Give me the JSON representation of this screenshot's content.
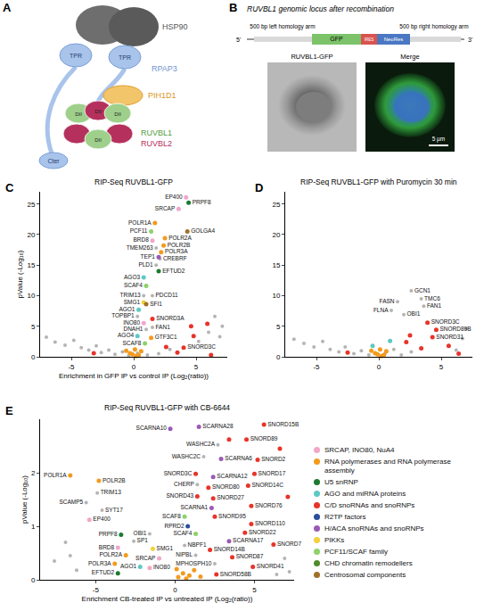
{
  "panel_A": {
    "label": "A",
    "hsp90": "HSP90",
    "tpr": [
      "TPR",
      "TPR"
    ],
    "rpap3": "RPAP3",
    "pih1d1": "PIH1D1",
    "domains": [
      "DII",
      "DII",
      "DII",
      "DII"
    ],
    "ruvbl1": "RUVBL1",
    "ruvbl2": "RUVBL2",
    "cter": "Cter"
  },
  "panel_B": {
    "label": "B",
    "title": "RUVBL1 genomic locus after recombination",
    "five_prime": "5'",
    "three_prime": "3'",
    "left_arm": "500 bp left homology arm",
    "right_arm": "500 bp right homology arm",
    "cassette": [
      "GFP",
      "IRES",
      "NeoRes"
    ],
    "images": [
      "RUVBL1-GFP",
      "Merge"
    ],
    "scale_bar": "5 µm"
  },
  "key": [
    {
      "name": "SRCAP, INO80, NuA4",
      "color": "#f2a7c9"
    },
    {
      "name": "RNA polymerases and RNA polymerase assembly",
      "color": "#f39a1e"
    },
    {
      "name": "U5 snRNP",
      "color": "#1b7a2f"
    },
    {
      "name": "AGO and miRNA proteins",
      "color": "#5ec8c5"
    },
    {
      "name": "C/D snoRNAs and snoRNPs",
      "color": "#e8332a"
    },
    {
      "name": "R2TP factors",
      "color": "#2b4e9b"
    },
    {
      "name": "H/ACA snoRNAs and snoRNPs",
      "color": "#9b59b6"
    },
    {
      "name": "PIKKs",
      "color": "#f2d13c"
    },
    {
      "name": "PCF11/SCAF family",
      "color": "#8fd16a"
    },
    {
      "name": "CHD chromatin remodellers",
      "color": "#4f8a2b"
    },
    {
      "name": "Centrosomal components",
      "color": "#a0712a"
    }
  ],
  "chart_data": [
    {
      "panel": "C",
      "type": "scatter",
      "title": "RIP-Seq RUVBL1-GFP",
      "x_label": "Enrichment in GFP IP vs control IP (Log₂(ratio))",
      "y_label": "pValue (-Log₁₀)",
      "xlim": [
        -7.5,
        7.5
      ],
      "ylim": [
        0,
        27
      ],
      "xticks": [
        -5,
        0,
        5
      ],
      "yticks": [
        0,
        5,
        10,
        15,
        20,
        25
      ],
      "series": [
        {
          "color": "#b4b4b4",
          "labels": [
            "TMEM263",
            "CREBRF",
            "PLD1",
            "TRIM13",
            "PDCD11",
            "TOPBP1",
            "DNAH1",
            "FAN1",
            null,
            null,
            null,
            null,
            null,
            null,
            null,
            null,
            null,
            null,
            null,
            null,
            null,
            null,
            null,
            null,
            null,
            null,
            null,
            null,
            null
          ],
          "x": [
            1.8,
            2.1,
            1.8,
            0.8,
            1.5,
            0.3,
            1.0,
            1.5,
            -7.0,
            -6.3,
            -5.5,
            -4.8,
            -4.2,
            -3.6,
            -3.0,
            -2.6,
            -2.0,
            -1.5,
            -0.9,
            -0.4,
            0.3,
            1.1,
            2.0,
            2.9,
            5.2,
            6.0,
            6.9,
            7.1,
            6.5
          ],
          "y": [
            17.8,
            16.0,
            15.0,
            10.0,
            10.0,
            6.6,
            4.5,
            4.8,
            3.2,
            2.4,
            1.9,
            2.7,
            1.5,
            1.1,
            1.8,
            0.7,
            1.1,
            0.4,
            0.8,
            0.2,
            0.6,
            0.3,
            0.5,
            1.2,
            2.5,
            4.0,
            3.3,
            5.0,
            6.6
          ]
        },
        {
          "name": "SRCAP, INO80, NuA4",
          "color": "#f2a7c9",
          "labels": [
            "EP400",
            "SRCAP",
            "BRD8",
            "INO80"
          ],
          "x": [
            4.2,
            3.6,
            1.5,
            0.8
          ],
          "y": [
            26.1,
            24.2,
            19.0,
            5.5
          ]
        },
        {
          "name": "RNA polymerases and RNA polymerase assembly",
          "color": "#f39a1e",
          "labels": [
            "POLR1A",
            "POLR2A",
            "POLR2B",
            "POLR3A",
            "GTF3C1",
            null,
            null,
            null,
            null,
            null,
            null,
            null
          ],
          "x": [
            1.7,
            2.5,
            2.4,
            2.2,
            1.4,
            0.1,
            -0.3,
            0.4,
            -0.6,
            0.6,
            0.2,
            -0.1
          ],
          "y": [
            21.9,
            19.4,
            18.2,
            17.1,
            3.1,
            1.2,
            0.6,
            0.3,
            1.0,
            0.9,
            0.1,
            0.4
          ]
        },
        {
          "name": "U5 snRNP",
          "color": "#1b7a2f",
          "labels": [
            "PRPF8",
            "EFTUD2"
          ],
          "x": [
            4.4,
            2.0
          ],
          "y": [
            25.2,
            14.0
          ]
        },
        {
          "name": "AGO and miRNA proteins",
          "color": "#5ec8c5",
          "labels": [
            "AGO3",
            "AGO1",
            "AGO4"
          ],
          "x": [
            0.8,
            0.4,
            0.3
          ],
          "y": [
            13.0,
            7.7,
            3.4
          ]
        },
        {
          "name": "C/D snoRNAs and snoRNPs",
          "color": "#e8332a",
          "labels": [
            "SNORD3A",
            "SNORD3C",
            null,
            null,
            null,
            null,
            null,
            null,
            null
          ],
          "x": [
            1.5,
            4.0,
            4.6,
            4.8,
            2.6,
            3.5,
            6.2,
            5.9,
            -3.2
          ],
          "y": [
            6.2,
            1.5,
            5.0,
            3.4,
            1.6,
            0.7,
            0.3,
            5.4,
            0.6
          ]
        },
        {
          "name": "H/ACA snoRNAs and snoRNPs",
          "color": "#9b59b6",
          "labels": [
            "TEP1"
          ],
          "x": [
            2.0
          ],
          "y": [
            16.3
          ]
        },
        {
          "name": "PIKKs",
          "color": "#f2d13c",
          "labels": [
            "SMG1"
          ],
          "x": [
            0.8
          ],
          "y": [
            8.9
          ]
        },
        {
          "name": "PCF11/SCAF family",
          "color": "#8fd16a",
          "labels": [
            "PCF11",
            "SCAF4",
            "SCAF8"
          ],
          "x": [
            1.4,
            1.0,
            0.9
          ],
          "y": [
            20.5,
            11.6,
            2.2
          ]
        },
        {
          "name": "Centrosomal components",
          "color": "#a0712a",
          "labels": [
            "GOLGA4",
            "SFI1"
          ],
          "x": [
            4.3,
            1.0
          ],
          "y": [
            20.5,
            8.6
          ]
        }
      ]
    },
    {
      "panel": "D",
      "type": "scatter",
      "title": "RIP-Seq RUVBL1-GFP with Puromycin 30 min",
      "xlim": [
        -7.5,
        7.5
      ],
      "ylim": [
        0,
        27
      ],
      "xticks": [
        -5,
        0,
        5
      ],
      "yticks": [
        0,
        5,
        10,
        15,
        20,
        25
      ],
      "series": [
        {
          "color": "#b4b4b4",
          "labels": [
            "GCN1",
            "TMC6",
            "FASN",
            "FAN1",
            "FLNA",
            "OBI1",
            null,
            null,
            null,
            null,
            null,
            null,
            null,
            null,
            null,
            null,
            null,
            null,
            null,
            null,
            null,
            null,
            null
          ],
          "x": [
            2.6,
            3.4,
            1.5,
            3.6,
            1.0,
            2.0,
            -6.8,
            -6.0,
            -5.2,
            -4.5,
            -3.9,
            -3.2,
            -2.7,
            -2.0,
            -1.4,
            -0.8,
            0.5,
            1.2,
            1.8,
            2.6,
            6.7,
            7.0,
            6.2
          ],
          "y": [
            10.8,
            9.5,
            9.0,
            8.3,
            7.6,
            6.9,
            2.9,
            2.2,
            1.6,
            2.5,
            1.2,
            0.8,
            1.6,
            0.5,
            1.0,
            0.3,
            0.5,
            1.2,
            0.3,
            0.8,
            3.0,
            4.6,
            1.1
          ]
        },
        {
          "name": "C/D snoRNAs and snoRNPs",
          "color": "#e8332a",
          "labels": [
            "SNORD3C",
            "SNORD89B",
            "SNORD31",
            null,
            null,
            null,
            null,
            null,
            null
          ],
          "x": [
            3.9,
            4.6,
            4.3,
            2.5,
            5.6,
            3.4,
            6.4,
            2.2,
            -2.5
          ],
          "y": [
            5.6,
            4.4,
            3.2,
            3.5,
            1.8,
            1.4,
            0.5,
            2.4,
            0.7
          ]
        },
        {
          "name": "RNA polymerases and RNA polymerase assembly",
          "color": "#f39a1e",
          "labels": [
            null,
            null,
            null,
            null,
            null,
            null,
            null
          ],
          "x": [
            0.1,
            -0.3,
            0.4,
            -0.6,
            0.6,
            0.2,
            -0.1
          ],
          "y": [
            1.2,
            0.6,
            0.3,
            1.0,
            0.9,
            0.1,
            0.4
          ]
        },
        {
          "name": "AGO and miRNA proteins",
          "color": "#5ec8c5",
          "labels": [
            null,
            null
          ],
          "x": [
            0.9,
            -0.5
          ],
          "y": [
            2.6,
            1.8
          ]
        }
      ]
    },
    {
      "panel": "E",
      "type": "scatter",
      "title": "RIP-Seq RUVBL1-GFP with CB-6644",
      "x_label": "Enrichment CB-treated IP vs untreated IP (Log₂(ratio))",
      "y_label": "pValue (-Log₁₀)",
      "xlim": [
        -8.5,
        7.5
      ],
      "ylim": [
        0,
        3
      ],
      "xticks": [
        -5,
        0,
        5
      ],
      "yticks": [
        0,
        1,
        2
      ],
      "series": [
        {
          "color": "#b4b4b4",
          "labels": [
            "WASHC2A",
            "WASHC2C",
            "CHERP",
            "NBPF1",
            "NIPBL",
            "MPHOSPH10",
            "TRIM13",
            "SCAMP5",
            "SYT17",
            "OBI1",
            "SP1",
            null,
            null,
            null,
            null,
            null,
            null,
            null
          ],
          "x": [
            2.7,
            1.8,
            1.4,
            0.6,
            1.3,
            2.5,
            -4.9,
            -5.6,
            -4.6,
            -1.6,
            -2.6,
            -7.6,
            -6.9,
            -6.2,
            -6.6,
            6.4,
            6.9,
            7.2
          ],
          "y": [
            2.52,
            2.3,
            1.78,
            0.64,
            0.46,
            0.3,
            1.62,
            1.44,
            1.3,
            0.86,
            0.72,
            0.35,
            0.7,
            0.18,
            0.45,
            0.1,
            0.4,
            0.15
          ]
        },
        {
          "name": "SRCAP, INO80, NuA4",
          "color": "#f2a7c9",
          "labels": [
            "EP400",
            "BRD8",
            "SRCAP",
            "INO80"
          ],
          "x": [
            -5.4,
            -3.6,
            -1.0,
            -1.6
          ],
          "y": [
            1.12,
            0.6,
            0.4,
            0.22
          ]
        },
        {
          "name": "RNA polymerases and RNA polymerase assembly",
          "color": "#f39a1e",
          "labels": [
            "POLR1A",
            "POLR2B",
            "POLR2A",
            "POLR3A",
            null,
            null,
            null,
            null,
            null,
            null,
            null
          ],
          "x": [
            -6.6,
            -4.8,
            -3.1,
            -3.8,
            0.2,
            0.5,
            0.9,
            1.2,
            0.1,
            1.6,
            0.7
          ],
          "y": [
            1.95,
            1.85,
            0.46,
            0.3,
            0.05,
            0.12,
            0.08,
            0.18,
            0.2,
            0.06,
            0.02
          ]
        },
        {
          "name": "U5 snRNP",
          "color": "#1b7a2f",
          "labels": [
            "PRPF8",
            "EFTUD2"
          ],
          "x": [
            -3.4,
            -3.6
          ],
          "y": [
            0.84,
            0.12
          ]
        },
        {
          "name": "AGO and miRNA proteins",
          "color": "#5ec8c5",
          "labels": [
            "AGO1"
          ],
          "x": [
            -2.2
          ],
          "y": [
            0.24
          ]
        },
        {
          "name": "C/D snoRNAs and snoRNPs",
          "color": "#e8332a",
          "labels": [
            "SNORD15B",
            "SNORD89",
            "SNORD2",
            "SNORD3C",
            "SNORD17",
            "SNORD80",
            "SNORD14C",
            "SNORD43",
            "SNORD27",
            "SNORD76",
            "SNORD95",
            "SNORD110",
            "SNORD22",
            "SNORD14B",
            "SNORD7",
            "SNORD87",
            "SNORD41",
            "SNORD58B",
            null,
            null,
            null
          ],
          "x": [
            5.6,
            4.5,
            5.2,
            1.3,
            5.0,
            2.1,
            4.6,
            1.4,
            2.4,
            4.8,
            2.5,
            4.8,
            4.4,
            2.2,
            6.2,
            3.6,
            4.9,
            2.6,
            6.6,
            3.4,
            7.1
          ],
          "y": [
            2.9,
            2.62,
            2.24,
            1.98,
            1.98,
            1.72,
            1.76,
            1.56,
            1.52,
            1.38,
            1.18,
            1.04,
            0.88,
            0.56,
            0.66,
            0.42,
            0.24,
            0.1,
            2.45,
            2.62,
            1.55
          ]
        },
        {
          "name": "R2TP factors",
          "color": "#2b4e9b",
          "labels": [
            "RPRD2"
          ],
          "x": [
            0.8
          ],
          "y": [
            1.0
          ]
        },
        {
          "name": "H/ACA snoRNAs and snoRNPs",
          "color": "#9b59b6",
          "labels": [
            "SCARNA10",
            "SCARNA28",
            "SCARNA6",
            "SCARNA12",
            "SCARNA1",
            "SCARNA17"
          ],
          "x": [
            -0.3,
            1.5,
            2.9,
            2.4,
            2.3,
            3.4
          ],
          "y": [
            2.82,
            2.86,
            2.26,
            1.92,
            1.34,
            0.72
          ]
        },
        {
          "name": "PIKKs",
          "color": "#f2d13c",
          "labels": [
            "SMG1"
          ],
          "x": [
            -1.4
          ],
          "y": [
            0.58
          ]
        },
        {
          "name": "PCF11/SCAF family",
          "color": "#8fd16a",
          "labels": [
            "SCAF8",
            "SCAF4"
          ],
          "x": [
            0.6,
            1.3
          ],
          "y": [
            1.18,
            0.86
          ]
        }
      ]
    }
  ]
}
